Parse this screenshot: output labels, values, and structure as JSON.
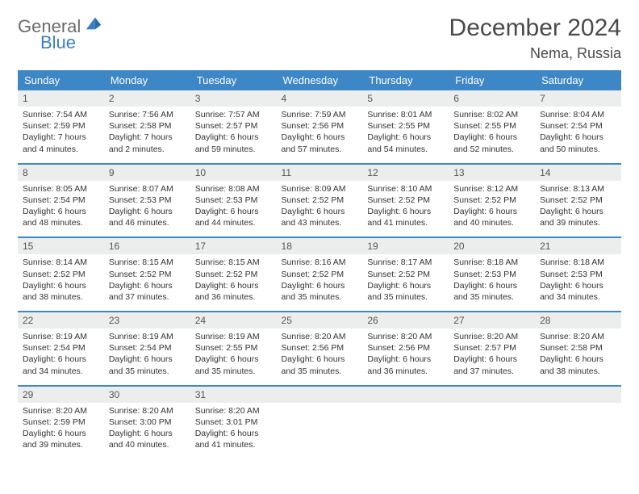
{
  "logo": {
    "general": "General",
    "blue": "Blue"
  },
  "title": "December 2024",
  "location": "Nema, Russia",
  "colors": {
    "header_bg": "#3d87c7",
    "header_text": "#ffffff",
    "daynum_bg": "#eceded",
    "row_divider": "#3d87c7",
    "body_text": "#333333",
    "logo_gray": "#6b6b6b",
    "logo_blue": "#3a7fc4",
    "page_bg": "#ffffff"
  },
  "day_labels": [
    "Sunday",
    "Monday",
    "Tuesday",
    "Wednesday",
    "Thursday",
    "Friday",
    "Saturday"
  ],
  "weeks": [
    [
      {
        "n": "1",
        "sr": "7:54 AM",
        "ss": "2:59 PM",
        "dl": "7 hours and 4 minutes."
      },
      {
        "n": "2",
        "sr": "7:56 AM",
        "ss": "2:58 PM",
        "dl": "7 hours and 2 minutes."
      },
      {
        "n": "3",
        "sr": "7:57 AM",
        "ss": "2:57 PM",
        "dl": "6 hours and 59 minutes."
      },
      {
        "n": "4",
        "sr": "7:59 AM",
        "ss": "2:56 PM",
        "dl": "6 hours and 57 minutes."
      },
      {
        "n": "5",
        "sr": "8:01 AM",
        "ss": "2:55 PM",
        "dl": "6 hours and 54 minutes."
      },
      {
        "n": "6",
        "sr": "8:02 AM",
        "ss": "2:55 PM",
        "dl": "6 hours and 52 minutes."
      },
      {
        "n": "7",
        "sr": "8:04 AM",
        "ss": "2:54 PM",
        "dl": "6 hours and 50 minutes."
      }
    ],
    [
      {
        "n": "8",
        "sr": "8:05 AM",
        "ss": "2:54 PM",
        "dl": "6 hours and 48 minutes."
      },
      {
        "n": "9",
        "sr": "8:07 AM",
        "ss": "2:53 PM",
        "dl": "6 hours and 46 minutes."
      },
      {
        "n": "10",
        "sr": "8:08 AM",
        "ss": "2:53 PM",
        "dl": "6 hours and 44 minutes."
      },
      {
        "n": "11",
        "sr": "8:09 AM",
        "ss": "2:52 PM",
        "dl": "6 hours and 43 minutes."
      },
      {
        "n": "12",
        "sr": "8:10 AM",
        "ss": "2:52 PM",
        "dl": "6 hours and 41 minutes."
      },
      {
        "n": "13",
        "sr": "8:12 AM",
        "ss": "2:52 PM",
        "dl": "6 hours and 40 minutes."
      },
      {
        "n": "14",
        "sr": "8:13 AM",
        "ss": "2:52 PM",
        "dl": "6 hours and 39 minutes."
      }
    ],
    [
      {
        "n": "15",
        "sr": "8:14 AM",
        "ss": "2:52 PM",
        "dl": "6 hours and 38 minutes."
      },
      {
        "n": "16",
        "sr": "8:15 AM",
        "ss": "2:52 PM",
        "dl": "6 hours and 37 minutes."
      },
      {
        "n": "17",
        "sr": "8:15 AM",
        "ss": "2:52 PM",
        "dl": "6 hours and 36 minutes."
      },
      {
        "n": "18",
        "sr": "8:16 AM",
        "ss": "2:52 PM",
        "dl": "6 hours and 35 minutes."
      },
      {
        "n": "19",
        "sr": "8:17 AM",
        "ss": "2:52 PM",
        "dl": "6 hours and 35 minutes."
      },
      {
        "n": "20",
        "sr": "8:18 AM",
        "ss": "2:53 PM",
        "dl": "6 hours and 35 minutes."
      },
      {
        "n": "21",
        "sr": "8:18 AM",
        "ss": "2:53 PM",
        "dl": "6 hours and 34 minutes."
      }
    ],
    [
      {
        "n": "22",
        "sr": "8:19 AM",
        "ss": "2:54 PM",
        "dl": "6 hours and 34 minutes."
      },
      {
        "n": "23",
        "sr": "8:19 AM",
        "ss": "2:54 PM",
        "dl": "6 hours and 35 minutes."
      },
      {
        "n": "24",
        "sr": "8:19 AM",
        "ss": "2:55 PM",
        "dl": "6 hours and 35 minutes."
      },
      {
        "n": "25",
        "sr": "8:20 AM",
        "ss": "2:56 PM",
        "dl": "6 hours and 35 minutes."
      },
      {
        "n": "26",
        "sr": "8:20 AM",
        "ss": "2:56 PM",
        "dl": "6 hours and 36 minutes."
      },
      {
        "n": "27",
        "sr": "8:20 AM",
        "ss": "2:57 PM",
        "dl": "6 hours and 37 minutes."
      },
      {
        "n": "28",
        "sr": "8:20 AM",
        "ss": "2:58 PM",
        "dl": "6 hours and 38 minutes."
      }
    ],
    [
      {
        "n": "29",
        "sr": "8:20 AM",
        "ss": "2:59 PM",
        "dl": "6 hours and 39 minutes."
      },
      {
        "n": "30",
        "sr": "8:20 AM",
        "ss": "3:00 PM",
        "dl": "6 hours and 40 minutes."
      },
      {
        "n": "31",
        "sr": "8:20 AM",
        "ss": "3:01 PM",
        "dl": "6 hours and 41 minutes."
      },
      null,
      null,
      null,
      null
    ]
  ],
  "labels": {
    "sunrise": "Sunrise: ",
    "sunset": "Sunset: ",
    "daylight": "Daylight: "
  }
}
